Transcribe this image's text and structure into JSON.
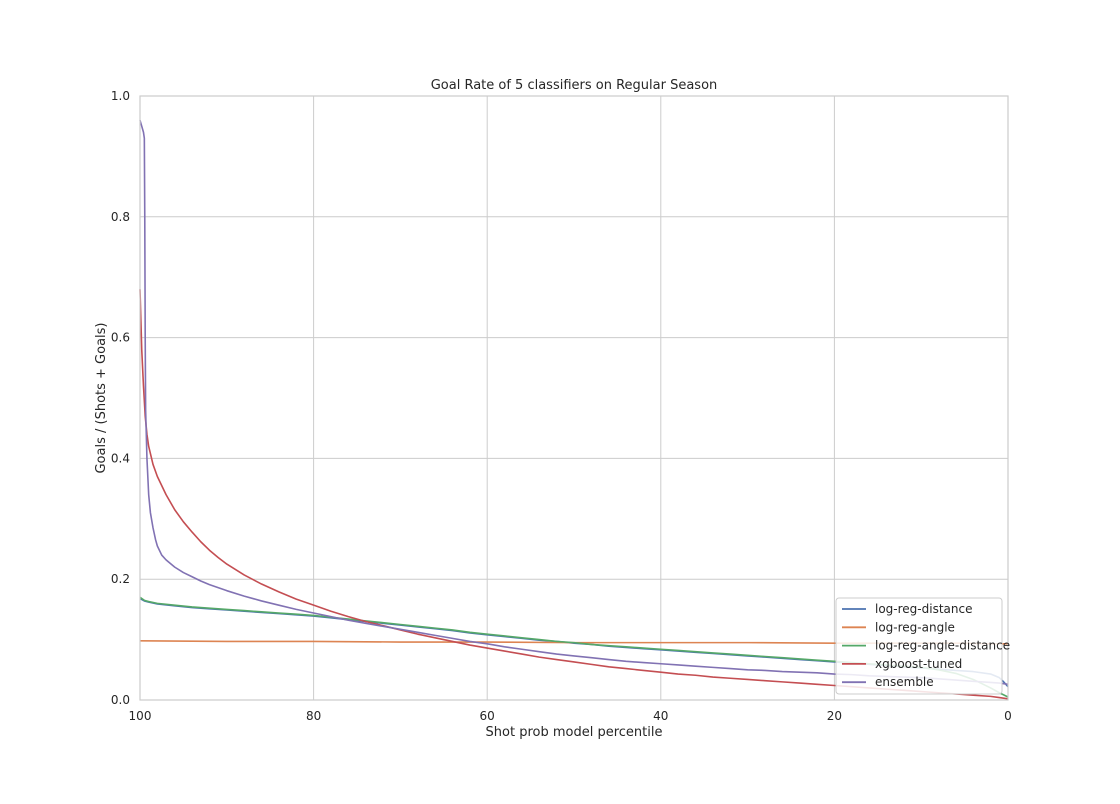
{
  "chart_data": {
    "type": "line",
    "title": "Goal Rate of 5 classifiers on Regular Season",
    "xlabel": "Shot prob model percentile",
    "ylabel": "Goals / (Shots + Goals)",
    "xlim": [
      100,
      0
    ],
    "ylim": [
      0.0,
      1.0
    ],
    "x_reversed": true,
    "xticks": [
      100,
      80,
      60,
      40,
      20,
      0
    ],
    "xtick_labels": [
      "100",
      "80",
      "60",
      "40",
      "20",
      "0"
    ],
    "yticks": [
      0.0,
      0.2,
      0.4,
      0.6,
      0.8,
      1.0
    ],
    "ytick_labels": [
      "0.0",
      "0.2",
      "0.4",
      "0.6",
      "0.8",
      "1.0"
    ],
    "grid": true,
    "legend_position": "bottom-right",
    "series": [
      {
        "name": "log-reg-distance",
        "color": "#4c72b0",
        "points": [
          [
            100,
            0.168
          ],
          [
            99.5,
            0.164
          ],
          [
            99,
            0.162
          ],
          [
            98,
            0.159
          ],
          [
            96,
            0.156
          ],
          [
            94,
            0.153
          ],
          [
            92,
            0.151
          ],
          [
            90,
            0.149
          ],
          [
            88,
            0.147
          ],
          [
            86,
            0.145
          ],
          [
            84,
            0.143
          ],
          [
            82,
            0.141
          ],
          [
            80,
            0.139
          ],
          [
            78,
            0.136
          ],
          [
            76,
            0.133
          ],
          [
            74,
            0.13
          ],
          [
            72,
            0.127
          ],
          [
            70,
            0.124
          ],
          [
            68,
            0.121
          ],
          [
            66,
            0.118
          ],
          [
            64,
            0.115
          ],
          [
            62,
            0.111
          ],
          [
            60,
            0.108
          ],
          [
            58,
            0.105
          ],
          [
            56,
            0.102
          ],
          [
            54,
            0.099
          ],
          [
            52,
            0.097
          ],
          [
            50,
            0.094
          ],
          [
            48,
            0.092
          ],
          [
            46,
            0.089
          ],
          [
            44,
            0.087
          ],
          [
            42,
            0.085
          ],
          [
            40,
            0.083
          ],
          [
            38,
            0.081
          ],
          [
            36,
            0.079
          ],
          [
            34,
            0.077
          ],
          [
            32,
            0.075
          ],
          [
            30,
            0.073
          ],
          [
            28,
            0.071
          ],
          [
            26,
            0.069
          ],
          [
            24,
            0.067
          ],
          [
            22,
            0.065
          ],
          [
            20,
            0.063
          ],
          [
            18,
            0.061
          ],
          [
            16,
            0.059
          ],
          [
            14,
            0.057
          ],
          [
            12,
            0.055
          ],
          [
            10,
            0.053
          ],
          [
            8,
            0.051
          ],
          [
            6,
            0.049
          ],
          [
            4,
            0.047
          ],
          [
            2,
            0.043
          ],
          [
            1,
            0.037
          ],
          [
            0.5,
            0.03
          ],
          [
            0,
            0.022
          ]
        ]
      },
      {
        "name": "log-reg-angle",
        "color": "#dd8452",
        "points": [
          [
            100,
            0.098
          ],
          [
            90,
            0.097
          ],
          [
            80,
            0.097
          ],
          [
            70,
            0.096
          ],
          [
            60,
            0.096
          ],
          [
            50,
            0.095
          ],
          [
            40,
            0.095
          ],
          [
            30,
            0.095
          ],
          [
            20,
            0.094
          ],
          [
            10,
            0.094
          ],
          [
            5,
            0.094
          ],
          [
            2,
            0.093
          ],
          [
            0,
            0.093
          ]
        ]
      },
      {
        "name": "log-reg-angle-distance",
        "color": "#55a868",
        "points": [
          [
            100,
            0.17
          ],
          [
            99.5,
            0.165
          ],
          [
            99,
            0.163
          ],
          [
            98,
            0.16
          ],
          [
            96,
            0.157
          ],
          [
            94,
            0.154
          ],
          [
            92,
            0.152
          ],
          [
            90,
            0.15
          ],
          [
            88,
            0.148
          ],
          [
            86,
            0.146
          ],
          [
            84,
            0.144
          ],
          [
            82,
            0.142
          ],
          [
            80,
            0.14
          ],
          [
            78,
            0.137
          ],
          [
            76,
            0.134
          ],
          [
            74,
            0.131
          ],
          [
            72,
            0.128
          ],
          [
            70,
            0.125
          ],
          [
            68,
            0.122
          ],
          [
            66,
            0.119
          ],
          [
            64,
            0.116
          ],
          [
            62,
            0.112
          ],
          [
            60,
            0.109
          ],
          [
            58,
            0.106
          ],
          [
            56,
            0.103
          ],
          [
            54,
            0.1
          ],
          [
            52,
            0.097
          ],
          [
            50,
            0.095
          ],
          [
            48,
            0.092
          ],
          [
            46,
            0.09
          ],
          [
            44,
            0.088
          ],
          [
            42,
            0.086
          ],
          [
            40,
            0.084
          ],
          [
            38,
            0.082
          ],
          [
            36,
            0.08
          ],
          [
            34,
            0.078
          ],
          [
            32,
            0.076
          ],
          [
            30,
            0.074
          ],
          [
            28,
            0.072
          ],
          [
            26,
            0.07
          ],
          [
            24,
            0.068
          ],
          [
            22,
            0.066
          ],
          [
            20,
            0.064
          ],
          [
            18,
            0.062
          ],
          [
            16,
            0.06
          ],
          [
            14,
            0.058
          ],
          [
            12,
            0.056
          ],
          [
            10,
            0.054
          ],
          [
            8,
            0.05
          ],
          [
            6,
            0.044
          ],
          [
            4,
            0.034
          ],
          [
            2,
            0.02
          ],
          [
            1,
            0.012
          ],
          [
            0,
            0.005
          ]
        ]
      },
      {
        "name": "xgboost-tuned",
        "color": "#c44e52",
        "points": [
          [
            100,
            0.68
          ],
          [
            99.8,
            0.58
          ],
          [
            99.6,
            0.52
          ],
          [
            99.4,
            0.47
          ],
          [
            99.2,
            0.44
          ],
          [
            99,
            0.42
          ],
          [
            98.5,
            0.39
          ],
          [
            98,
            0.37
          ],
          [
            97,
            0.34
          ],
          [
            96,
            0.315
          ],
          [
            95,
            0.295
          ],
          [
            94,
            0.278
          ],
          [
            93,
            0.262
          ],
          [
            92,
            0.248
          ],
          [
            91,
            0.236
          ],
          [
            90,
            0.225
          ],
          [
            88,
            0.207
          ],
          [
            86,
            0.192
          ],
          [
            84,
            0.179
          ],
          [
            82,
            0.167
          ],
          [
            80,
            0.157
          ],
          [
            78,
            0.147
          ],
          [
            76,
            0.138
          ],
          [
            74,
            0.13
          ],
          [
            72,
            0.123
          ],
          [
            70,
            0.116
          ],
          [
            68,
            0.109
          ],
          [
            66,
            0.103
          ],
          [
            64,
            0.097
          ],
          [
            62,
            0.091
          ],
          [
            60,
            0.086
          ],
          [
            58,
            0.081
          ],
          [
            56,
            0.076
          ],
          [
            54,
            0.071
          ],
          [
            52,
            0.067
          ],
          [
            50,
            0.063
          ],
          [
            48,
            0.059
          ],
          [
            46,
            0.055
          ],
          [
            44,
            0.052
          ],
          [
            42,
            0.049
          ],
          [
            40,
            0.046
          ],
          [
            38,
            0.043
          ],
          [
            36,
            0.041
          ],
          [
            34,
            0.038
          ],
          [
            32,
            0.036
          ],
          [
            30,
            0.034
          ],
          [
            28,
            0.032
          ],
          [
            26,
            0.03
          ],
          [
            24,
            0.028
          ],
          [
            22,
            0.026
          ],
          [
            20,
            0.024
          ],
          [
            18,
            0.022
          ],
          [
            16,
            0.02
          ],
          [
            14,
            0.018
          ],
          [
            12,
            0.016
          ],
          [
            10,
            0.014
          ],
          [
            8,
            0.012
          ],
          [
            6,
            0.01
          ],
          [
            4,
            0.008
          ],
          [
            2,
            0.006
          ],
          [
            1,
            0.004
          ],
          [
            0,
            0.002
          ]
        ]
      },
      {
        "name": "ensemble",
        "color": "#8172b3",
        "points": [
          [
            100,
            0.96
          ],
          [
            99.8,
            0.95
          ],
          [
            99.6,
            0.94
          ],
          [
            99.5,
            0.93
          ],
          [
            99.45,
            0.8
          ],
          [
            99.4,
            0.6
          ],
          [
            99.35,
            0.48
          ],
          [
            99.2,
            0.4
          ],
          [
            99,
            0.34
          ],
          [
            98.8,
            0.31
          ],
          [
            98.5,
            0.285
          ],
          [
            98.2,
            0.265
          ],
          [
            98,
            0.255
          ],
          [
            97.5,
            0.24
          ],
          [
            97,
            0.232
          ],
          [
            96,
            0.22
          ],
          [
            95,
            0.211
          ],
          [
            94,
            0.204
          ],
          [
            93,
            0.197
          ],
          [
            92,
            0.191
          ],
          [
            91,
            0.186
          ],
          [
            90,
            0.181
          ],
          [
            88,
            0.172
          ],
          [
            86,
            0.164
          ],
          [
            84,
            0.157
          ],
          [
            82,
            0.15
          ],
          [
            80,
            0.144
          ],
          [
            78,
            0.138
          ],
          [
            76,
            0.132
          ],
          [
            74,
            0.127
          ],
          [
            72,
            0.122
          ],
          [
            70,
            0.117
          ],
          [
            68,
            0.112
          ],
          [
            66,
            0.107
          ],
          [
            64,
            0.102
          ],
          [
            62,
            0.097
          ],
          [
            60,
            0.093
          ],
          [
            58,
            0.088
          ],
          [
            56,
            0.084
          ],
          [
            54,
            0.08
          ],
          [
            52,
            0.076
          ],
          [
            50,
            0.073
          ],
          [
            48,
            0.07
          ],
          [
            46,
            0.067
          ],
          [
            44,
            0.064
          ],
          [
            42,
            0.062
          ],
          [
            40,
            0.06
          ],
          [
            38,
            0.058
          ],
          [
            36,
            0.056
          ],
          [
            34,
            0.054
          ],
          [
            32,
            0.052
          ],
          [
            30,
            0.05
          ],
          [
            28,
            0.049
          ],
          [
            26,
            0.047
          ],
          [
            24,
            0.046
          ],
          [
            22,
            0.045
          ],
          [
            20,
            0.043
          ],
          [
            18,
            0.042
          ],
          [
            16,
            0.04
          ],
          [
            14,
            0.039
          ],
          [
            12,
            0.038
          ],
          [
            10,
            0.037
          ],
          [
            8,
            0.035
          ],
          [
            6,
            0.033
          ],
          [
            4,
            0.031
          ],
          [
            2,
            0.029
          ],
          [
            1,
            0.028
          ],
          [
            0,
            0.026
          ]
        ]
      }
    ]
  }
}
